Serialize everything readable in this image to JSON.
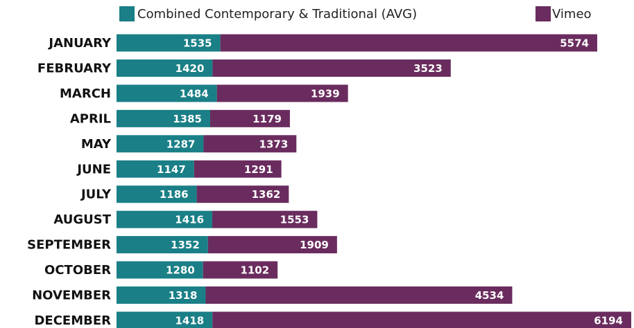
{
  "chart_data": {
    "type": "stacked-bar-horizontal",
    "categories": [
      "JANUARY",
      "FEBRUARY",
      "MARCH",
      "APRIL",
      "MAY",
      "JUNE",
      "JULY",
      "AUGUST",
      "SEPTEMBER",
      "OCTOBER",
      "NOVEMBER",
      "DECEMBER"
    ],
    "series": [
      {
        "name": "Combined Contemporary & Traditional  (AVG)",
        "color": "#1a7f86",
        "values": [
          1535,
          1420,
          1484,
          1385,
          1287,
          1147,
          1186,
          1416,
          1352,
          1280,
          1318,
          1418
        ]
      },
      {
        "name": "Vimeo",
        "color": "#6a2c5e",
        "values": [
          5574,
          3523,
          1939,
          1179,
          1373,
          1291,
          1362,
          1553,
          1909,
          1102,
          4534,
          6194
        ]
      }
    ],
    "legend": "top"
  }
}
